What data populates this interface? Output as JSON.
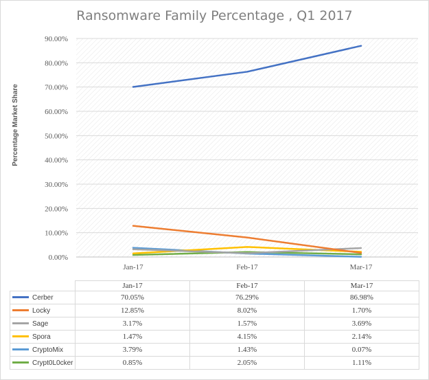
{
  "chart_data": {
    "type": "line",
    "title": "Ransomware Family Percentage , Q1 2017",
    "xlabel": "",
    "ylabel": "Percentage Market Share",
    "categories": [
      "Jan-17",
      "Feb-17",
      "Mar-17"
    ],
    "ylim": [
      0,
      90
    ],
    "yticks": [
      "0.00%",
      "10.00%",
      "20.00%",
      "30.00%",
      "40.00%",
      "50.00%",
      "60.00%",
      "70.00%",
      "80.00%",
      "90.00%"
    ],
    "grid": true,
    "legend": "data-table-below",
    "series": [
      {
        "name": "Cerber",
        "color": "#4472c4",
        "values": [
          70.05,
          76.29,
          86.98
        ],
        "labels": [
          "70.05%",
          "76.29%",
          "86.98%"
        ]
      },
      {
        "name": "Locky",
        "color": "#ed7d31",
        "values": [
          12.85,
          8.02,
          1.7
        ],
        "labels": [
          "12.85%",
          "8.02%",
          "1.70%"
        ]
      },
      {
        "name": "Sage",
        "color": "#a5a5a5",
        "values": [
          3.17,
          1.57,
          3.69
        ],
        "labels": [
          "3.17%",
          "1.57%",
          "3.69%"
        ]
      },
      {
        "name": "Spora",
        "color": "#ffc000",
        "values": [
          1.47,
          4.15,
          2.14
        ],
        "labels": [
          "1.47%",
          "4.15%",
          "2.14%"
        ]
      },
      {
        "name": "CryptoMix",
        "color": "#5b9bd5",
        "values": [
          3.79,
          1.43,
          0.07
        ],
        "labels": [
          "3.79%",
          "1.43%",
          "0.07%"
        ]
      },
      {
        "name": "Crypt0L0cker",
        "color": "#70ad47",
        "values": [
          0.85,
          2.05,
          1.11
        ],
        "labels": [
          "0.85%",
          "2.05%",
          "1.11%"
        ]
      }
    ]
  }
}
